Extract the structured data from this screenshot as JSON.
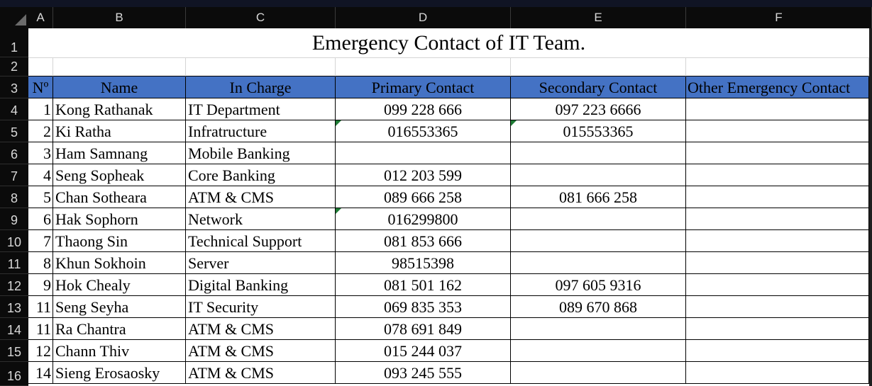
{
  "columns": [
    "A",
    "B",
    "C",
    "D",
    "E",
    "F"
  ],
  "row_numbers": [
    "1",
    "2",
    "3",
    "4",
    "5",
    "6",
    "7",
    "8",
    "9",
    "10",
    "11",
    "12",
    "13",
    "14",
    "15",
    "16"
  ],
  "title": "Emergency Contact of IT Team.",
  "headers": {
    "no": "Nº",
    "name": "Name",
    "in_charge": "In Charge",
    "primary": "Primary Contact",
    "secondary": "Secondary Contact",
    "other": "Other Emergency Contact"
  },
  "rows": [
    {
      "no": "1",
      "name": "Kong Rathanak",
      "in_charge": "IT Department",
      "primary": "099 228 666",
      "secondary": "097 223 6666",
      "other": ""
    },
    {
      "no": "2",
      "name": "Ki Ratha",
      "in_charge": "Infratructure",
      "primary": "016553365",
      "secondary": "015553365",
      "other": ""
    },
    {
      "no": "3",
      "name": "Ham Samnang",
      "in_charge": "Mobile Banking",
      "primary": "",
      "secondary": "",
      "other": ""
    },
    {
      "no": "4",
      "name": "Seng Sopheak",
      "in_charge": "Core Banking",
      "primary": "012 203 599",
      "secondary": "",
      "other": ""
    },
    {
      "no": "5",
      "name": "Chan Sotheara",
      "in_charge": "ATM & CMS",
      "primary": "089 666 258",
      "secondary": "081 666 258",
      "other": ""
    },
    {
      "no": "6",
      "name": "Hak Sophorn",
      "in_charge": "Network",
      "primary": "016299800",
      "secondary": "",
      "other": ""
    },
    {
      "no": "7",
      "name": "Thaong Sin",
      "in_charge": "Technical Support",
      "primary": "081 853 666",
      "secondary": "",
      "other": ""
    },
    {
      "no": "8",
      "name": "Khun Sokhoin",
      "in_charge": "Server",
      "primary": "98515398",
      "secondary": "",
      "other": ""
    },
    {
      "no": "9",
      "name": "Hok Chealy",
      "in_charge": "Digital Banking",
      "primary": "081 501 162",
      "secondary": "097 605 9316",
      "other": ""
    },
    {
      "no": "11",
      "name": "Seng Seyha",
      "in_charge": "IT Security",
      "primary": "069 835 353",
      "secondary": "089 670 868",
      "other": ""
    },
    {
      "no": "11",
      "name": "Ra Chantra",
      "in_charge": "ATM & CMS",
      "primary": "078 691 849",
      "secondary": "",
      "other": ""
    },
    {
      "no": "12",
      "name": "Chann Thiv",
      "in_charge": "ATM & CMS",
      "primary": "015 244 037",
      "secondary": "",
      "other": ""
    },
    {
      "no": "14",
      "name": "Sieng Erosaosky",
      "in_charge": "ATM & CMS",
      "primary": "093 245 555",
      "secondary": "",
      "other": ""
    }
  ],
  "colors": {
    "header_fill": "#4472c4",
    "text_indicator": "#1e7b34",
    "chrome_dark": "#0b0b0b"
  }
}
